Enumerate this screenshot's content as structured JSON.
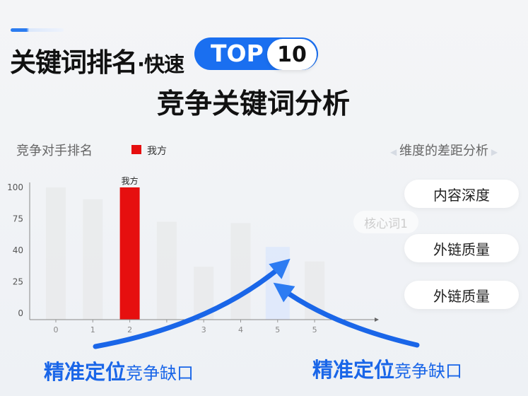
{
  "header": {
    "title_main": "关键词排名",
    "title_dot": "·快速",
    "badge_top": "TOP",
    "badge_num": "10",
    "subtitle": "竞争关键词分析"
  },
  "left_panel": {
    "label": "竞争对手排名",
    "legend": "我方"
  },
  "right_panel": {
    "label": "维度的差距分析",
    "core_word": "核心词1",
    "items": [
      "内容深度",
      "外链质量",
      "外链质量"
    ]
  },
  "bottom": {
    "left_big": "精准定位",
    "left_small": "竞争缺口",
    "right_big": "精准定位",
    "right_small": "竞争缺口"
  },
  "colors": {
    "accent": "#1a6ff0",
    "ours": "#e60f0f",
    "competitor": "#e9eaeb",
    "highlight": "#dde8fb"
  },
  "chart_data": {
    "type": "bar",
    "categories": [
      "0",
      "1",
      "2",
      "",
      "3",
      "4",
      "5",
      "5"
    ],
    "values": [
      100,
      91,
      100,
      74,
      40,
      73,
      55,
      44
    ],
    "highlight_index": 2,
    "highlight_label": "我方",
    "gap_index": 6,
    "ytick_labels": [
      "0",
      "25",
      "40",
      "75",
      "100"
    ],
    "ylim": [
      0,
      100
    ],
    "grid": false
  }
}
